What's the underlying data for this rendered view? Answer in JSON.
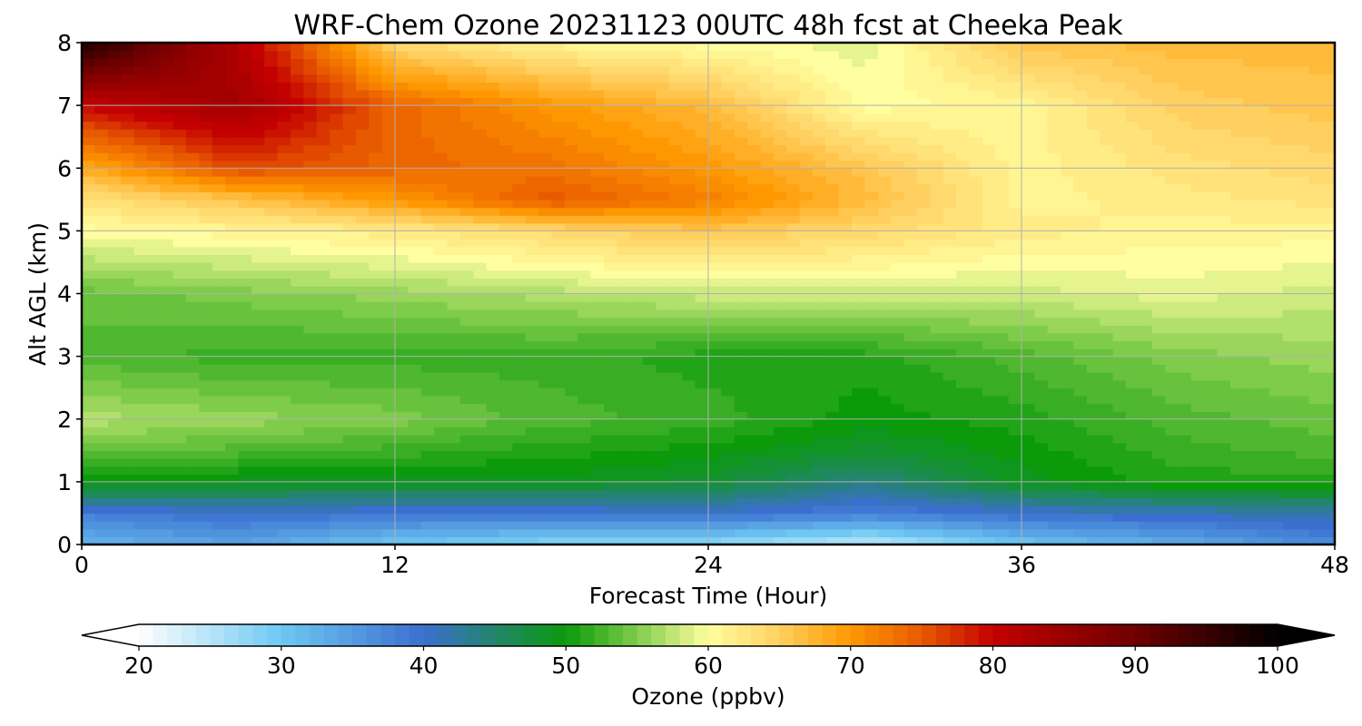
{
  "chart_data": [
    {
      "type": "heatmap",
      "title": "WRF-Chem Ozone  20231123 00UTC 48h fcst at Cheeka Peak",
      "xlabel": "Forecast Time (Hour)",
      "ylabel": "Alt AGL (km)",
      "xlim": [
        0,
        48
      ],
      "ylim": [
        0,
        8
      ],
      "x_ticks": [
        "0",
        "12",
        "24",
        "36",
        "48"
      ],
      "y_ticks": [
        "0",
        "1",
        "2",
        "3",
        "4",
        "5",
        "6",
        "7",
        "8"
      ],
      "grid": true,
      "x": [
        0,
        6,
        12,
        18,
        24,
        30,
        36,
        42,
        48
      ],
      "y": [
        0,
        0.5,
        1,
        1.5,
        2,
        3,
        4,
        5,
        5.5,
        6,
        7,
        8
      ],
      "values": [
        [
          32,
          34,
          30,
          28,
          27,
          24,
          30,
          33,
          37
        ],
        [
          38,
          40,
          39,
          39,
          40,
          38,
          40,
          41,
          42
        ],
        [
          50,
          49,
          49,
          49,
          48,
          44,
          49,
          51,
          51
        ],
        [
          54,
          53,
          52,
          51,
          50,
          48,
          50,
          52,
          53
        ],
        [
          57,
          56,
          55,
          53,
          52,
          50,
          51,
          53,
          54
        ],
        [
          53,
          52,
          52,
          52,
          51,
          51,
          53,
          55,
          56
        ],
        [
          54,
          55,
          56,
          57,
          58,
          58,
          58,
          59,
          58
        ],
        [
          60,
          61,
          62,
          64,
          66,
          64,
          62,
          61,
          61
        ],
        [
          63,
          66,
          70,
          75,
          72,
          67,
          61,
          62,
          63
        ],
        [
          68,
          76,
          74,
          73,
          70,
          66,
          61,
          63,
          64
        ],
        [
          80,
          84,
          74,
          70,
          67,
          60,
          61,
          65,
          66
        ],
        [
          98,
          82,
          64,
          61,
          60,
          59,
          66,
          67,
          67
        ]
      ]
    },
    {
      "type": "colorbar",
      "label": "Ozone  (ppbv)",
      "range": [
        20,
        100
      ],
      "ticks": [
        "20",
        "30",
        "40",
        "50",
        "60",
        "70",
        "80",
        "90",
        "100"
      ],
      "extend": "both",
      "colormap": [
        [
          20,
          "#ffffff"
        ],
        [
          30,
          "#6ec8f2"
        ],
        [
          40,
          "#3b6fcf"
        ],
        [
          50,
          "#0a9a0a"
        ],
        [
          55,
          "#7fcc4a"
        ],
        [
          60,
          "#fffea0"
        ],
        [
          65,
          "#ffd060"
        ],
        [
          70,
          "#ff9800"
        ],
        [
          75,
          "#e85a00"
        ],
        [
          80,
          "#c40000"
        ],
        [
          90,
          "#700000"
        ],
        [
          100,
          "#000000"
        ]
      ]
    }
  ]
}
